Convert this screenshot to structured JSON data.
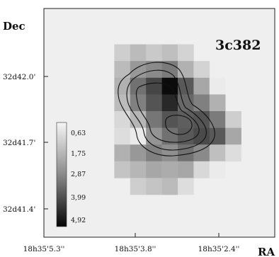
{
  "chart_data": {
    "type": "heatmap",
    "object_label": "3c382",
    "xlabel": "RA",
    "ylabel": "Dec",
    "x_ticks": [
      "18h35'5.3''",
      "18h35'3.8''",
      "18h35'2.4''"
    ],
    "y_ticks": [
      "32d42.0'",
      "32d41.7'",
      "32d41.4'"
    ],
    "colorbar": {
      "labels": [
        "0,63",
        "1,75",
        "2,87",
        "3,99",
        "4,92"
      ],
      "min": 0.63,
      "max": 4.92,
      "scale": "gray, white = low, black = high"
    },
    "grid": {
      "rows": 11,
      "cols": 9,
      "values": [
        [
          null,
          null,
          null,
          null,
          null,
          null,
          null,
          null,
          null
        ],
        [
          null,
          0.9,
          1.3,
          1.0,
          1.2,
          0.8,
          null,
          null,
          null
        ],
        [
          null,
          1.3,
          2.0,
          2.3,
          2.6,
          1.5,
          0.8,
          null,
          null
        ],
        [
          null,
          1.5,
          2.8,
          3.7,
          4.9,
          3.3,
          1.7,
          0.3,
          null
        ],
        [
          null,
          1.3,
          2.5,
          3.4,
          4.3,
          3.0,
          2.5,
          1.5,
          null
        ],
        [
          null,
          0.7,
          1.4,
          2.7,
          3.4,
          3.2,
          3.4,
          2.6,
          0.9
        ],
        [
          null,
          0.6,
          0.3,
          2.1,
          2.8,
          3.3,
          3.6,
          3.3,
          1.7
        ],
        [
          null,
          1.5,
          2.0,
          2.5,
          2.2,
          2.8,
          2.3,
          1.2,
          0.6
        ],
        [
          null,
          1.1,
          1.4,
          1.7,
          1.6,
          1.7,
          0.7,
          0.3,
          null
        ],
        [
          null,
          null,
          0.9,
          1.1,
          1.3,
          0.6,
          null,
          null,
          null
        ],
        [
          null,
          null,
          null,
          null,
          null,
          null,
          null,
          null,
          null
        ]
      ]
    },
    "contour_levels": 4,
    "grid_lines": false,
    "legend_position": "left"
  }
}
